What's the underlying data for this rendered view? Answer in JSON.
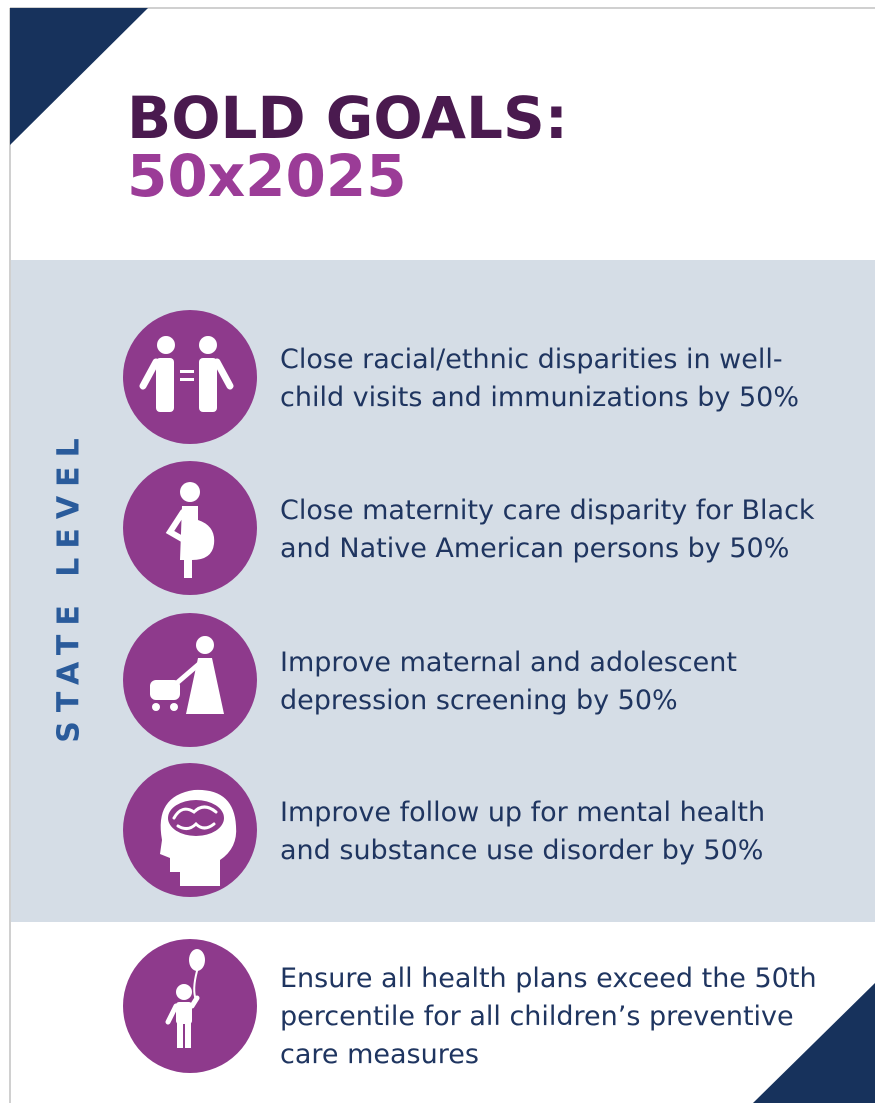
{
  "header": {
    "title_line1": "BOLD GOALS:",
    "title_line2": "50x2025"
  },
  "side_label": "STATE LEVEL",
  "state_goals": [
    {
      "lines": [
        "Close racial/ethnic disparities in well-",
        "child visits and immunizations by 50%"
      ]
    },
    {
      "lines": [
        "Close maternity care disparity for Black",
        "and Native American persons by 50%"
      ]
    },
    {
      "lines": [
        "Improve maternal and adolescent",
        "depression screening by 50%"
      ]
    },
    {
      "lines": [
        "Improve follow up for mental health",
        "and substance use disorder by 50%"
      ]
    }
  ],
  "other_goals": [
    {
      "lines": [
        "Ensure all health plans exceed the 50th",
        "percentile for all children’s preventive",
        "care measures"
      ]
    }
  ]
}
